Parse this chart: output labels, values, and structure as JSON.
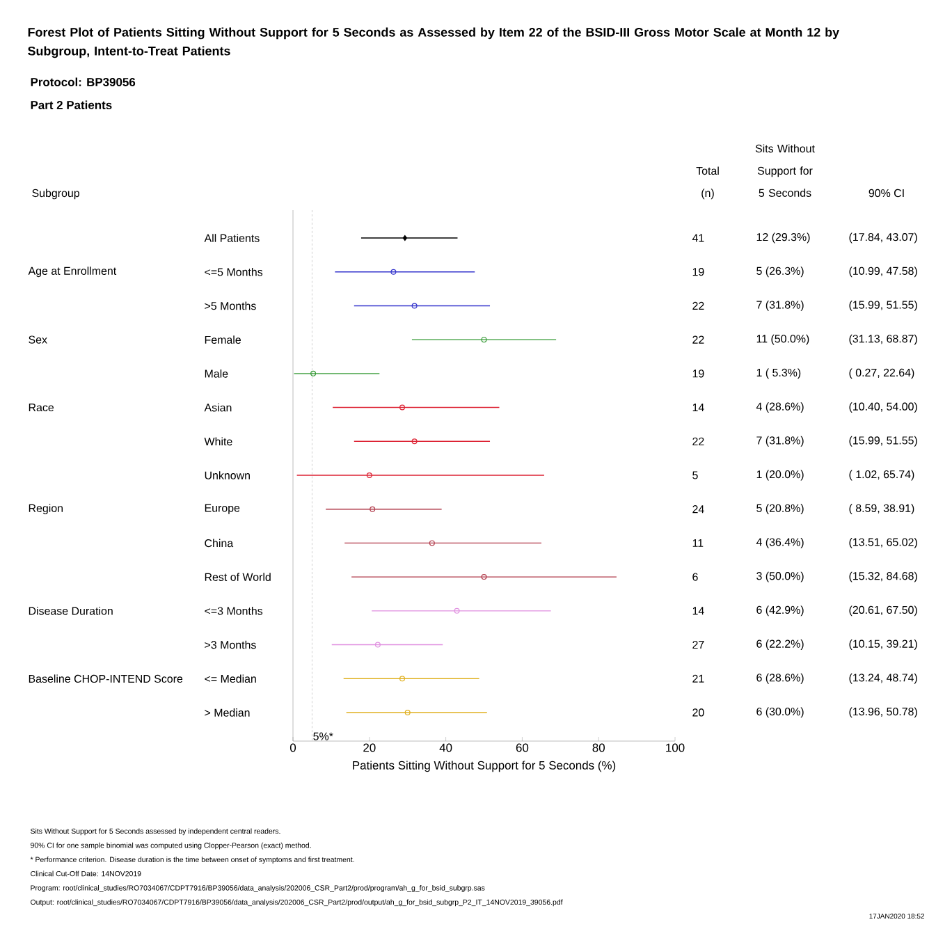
{
  "chart_data": {
    "type": "scatter",
    "orientation": "horizontal",
    "title": "Forest Plot of Patients Sitting Without Support for 5 Seconds as Assessed by Item 22 of the BSID-III Gross Motor Scale at Month 12 by Subgroup, Intent-to-Treat Patients",
    "subtitle": "Protocol: BP39056",
    "xlabel": "Patients Sitting Without Support for 5 Seconds (%)",
    "categories": [
      "All Patients",
      "<=5 Months",
      ">5 Months",
      "Female",
      "Male",
      "Asian",
      "White",
      "Unknown",
      "Europe",
      "China",
      "Rest of World",
      "<=3 Months",
      ">3 Months",
      "<= Median",
      "> Median"
    ],
    "xlim": [
      0,
      100
    ],
    "xticks": [
      0,
      20,
      40,
      60,
      80,
      100
    ],
    "series": [
      {
        "color": "#000000",
        "marker": "diamond",
        "values": [
          29.3,
          null,
          null,
          null,
          null,
          null,
          null,
          null,
          null,
          null,
          null,
          null,
          null,
          null,
          null
        ],
        "errors": [
          [
            17.84,
            43.07
          ],
          null,
          null,
          null,
          null,
          null,
          null,
          null,
          null,
          null,
          null,
          null,
          null,
          null,
          null
        ]
      },
      {
        "color": "#3333cc",
        "marker": "circle",
        "values": [
          null,
          26.3,
          31.8,
          null,
          null,
          null,
          null,
          null,
          null,
          null,
          null,
          null,
          null,
          null,
          null
        ],
        "errors": [
          null,
          [
            10.99,
            47.58
          ],
          [
            15.99,
            51.55
          ],
          null,
          null,
          null,
          null,
          null,
          null,
          null,
          null,
          null,
          null,
          null,
          null
        ]
      },
      {
        "color": "#339933",
        "marker": "circle",
        "values": [
          null,
          null,
          null,
          50.0,
          5.3,
          null,
          null,
          null,
          null,
          null,
          null,
          null,
          null,
          null,
          null
        ],
        "errors": [
          null,
          null,
          null,
          [
            31.13,
            68.87
          ],
          [
            0.27,
            22.64
          ],
          null,
          null,
          null,
          null,
          null,
          null,
          null,
          null,
          null,
          null
        ]
      },
      {
        "color": "#dd2233",
        "marker": "circle",
        "values": [
          null,
          null,
          null,
          null,
          null,
          28.6,
          31.8,
          20.0,
          null,
          null,
          null,
          null,
          null,
          null,
          null
        ],
        "errors": [
          null,
          null,
          null,
          null,
          null,
          [
            10.4,
            54.0
          ],
          [
            15.99,
            51.55
          ],
          [
            1.02,
            65.74
          ],
          null,
          null,
          null,
          null,
          null,
          null,
          null
        ]
      },
      {
        "color": "#b03848",
        "marker": "circle",
        "values": [
          null,
          null,
          null,
          null,
          null,
          null,
          null,
          null,
          20.8,
          36.4,
          50.0,
          null,
          null,
          null,
          null
        ],
        "errors": [
          null,
          null,
          null,
          null,
          null,
          null,
          null,
          null,
          [
            8.59,
            38.91
          ],
          [
            13.51,
            65.02
          ],
          [
            15.32,
            84.68
          ],
          null,
          null,
          null,
          null
        ]
      },
      {
        "color": "#e090e0",
        "marker": "circle",
        "values": [
          null,
          null,
          null,
          null,
          null,
          null,
          null,
          null,
          null,
          null,
          null,
          42.9,
          22.2,
          null,
          null
        ],
        "errors": [
          null,
          null,
          null,
          null,
          null,
          null,
          null,
          null,
          null,
          null,
          null,
          [
            20.61,
            67.5
          ],
          [
            10.15,
            39.21
          ],
          null,
          null
        ]
      },
      {
        "color": "#e0b020",
        "marker": "circle",
        "values": [
          null,
          null,
          null,
          null,
          null,
          null,
          null,
          null,
          null,
          null,
          null,
          null,
          null,
          28.6,
          30.0
        ],
        "errors": [
          null,
          null,
          null,
          null,
          null,
          null,
          null,
          null,
          null,
          null,
          null,
          null,
          null,
          [
            13.24,
            48.74
          ],
          [
            13.96,
            50.78
          ]
        ]
      }
    ],
    "ref_lines": [
      {
        "axis": "x",
        "value": 5,
        "label": "5%*",
        "line_style": "dashed",
        "color": "#888888"
      }
    ],
    "annotations": [
      "Subgroup",
      "Total (n)",
      "Sits Without Support for 5 Seconds",
      "90% CI",
      "Part 2 Patients",
      "Age at Enrollment",
      "Sex",
      "Race",
      "Region",
      "Disease Duration",
      "Baseline CHOP-INTEND Score",
      "41",
      "12 (29.3%)",
      "(17.84, 43.07)",
      "19",
      "5 (26.3%)",
      "(10.99, 47.58)",
      "22",
      "7 (31.8%)",
      "(15.99, 51.55)",
      "22",
      "11 (50.0%)",
      "(31.13, 68.87)",
      "19",
      "1 ( 5.3%)",
      "( 0.27, 22.64)",
      "14",
      "4 (28.6%)",
      "(10.40, 54.00)",
      "22",
      "7 (31.8%)",
      "(15.99, 51.55)",
      "5",
      "1 (20.0%)",
      "( 1.02, 65.74)",
      "24",
      "5 (20.8%)",
      "( 8.59, 38.91)",
      "11",
      "4 (36.4%)",
      "(13.51, 65.02)",
      "6",
      "3 (50.0%)",
      "(15.32, 84.68)",
      "14",
      "6 (42.9%)",
      "(20.61, 67.50)",
      "27",
      "6 (22.2%)",
      "(10.15, 39.21)",
      "21",
      "6 (28.6%)",
      "(13.24, 48.74)",
      "20",
      "6 (30.0%)",
      "(13.96, 50.78)",
      "Sits Without Support for 5 Seconds assessed by independent central readers.",
      "90% CI for one sample binomial was computed using Clopper-Pearson (exact) method.",
      "* Performance criterion. Disease duration is the time between onset of symptoms and first treatment.",
      "Clinical Cut-Off Date: 14NOV2019",
      "Program: root/clinical_studies/RO7034067/CDPT7916/BP39056/data_analysis/202006_CSR_Part2/prod/program/ah_g_for_bsid_subgrp.sas",
      "Output: root/clinical_studies/RO7034067/CDPT7916/BP39056/data_analysis/202006_CSR_Part2/prod/output/ah_g_for_bsid_subgrp_P2_IT_14NOV2019_39056.pdf",
      "17JAN2020 18:52"
    ]
  }
}
